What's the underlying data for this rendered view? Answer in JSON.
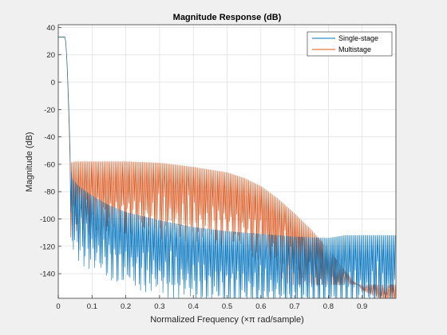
{
  "chart_data": {
    "type": "line",
    "title": "Magnitude Response (dB)",
    "xlabel": "Normalized Frequency (×π rad/sample)",
    "ylabel": "Magnitude (dB)",
    "xlim": [
      0,
      1
    ],
    "ylim": [
      -158,
      42
    ],
    "xticks": [
      0,
      0.1,
      0.2,
      0.3,
      0.4,
      0.5,
      0.6,
      0.7,
      0.8,
      0.9
    ],
    "yticks": [
      -140,
      -120,
      -100,
      -80,
      -60,
      -40,
      -20,
      0,
      20,
      40
    ],
    "grid": true,
    "legend": {
      "position": "top-right",
      "entries": [
        "Single-stage",
        "Multistage"
      ]
    },
    "colors": {
      "Single-stage": "#0072bd",
      "Multistage": "#d95319",
      "background": "#ffffff",
      "figure": "#f0f0f0",
      "grid": "#dfdfdf"
    },
    "series": [
      {
        "name": "Single-stage",
        "passband_gain_db": 33,
        "passband_edge": 0.02,
        "stopband_start": 0.035,
        "envelope_top": {
          "x": [
            0.035,
            0.04,
            0.06,
            0.1,
            0.15,
            0.2,
            0.3,
            0.4,
            0.5,
            0.6,
            0.7,
            0.8,
            0.85,
            1.0
          ],
          "y": [
            -50,
            -70,
            -76,
            -83,
            -90,
            -95,
            -101,
            -106,
            -109,
            -111,
            -113,
            -114,
            -112,
            -112
          ]
        },
        "ripple_floor_db": -150
      },
      {
        "name": "Multistage",
        "passband_gain_db": 33,
        "passband_edge": 0.02,
        "stopband_start": 0.035,
        "envelope_top": {
          "x": [
            0.035,
            0.05,
            0.1,
            0.2,
            0.3,
            0.4,
            0.5,
            0.55,
            0.6,
            0.65,
            0.7,
            0.75,
            0.8,
            0.85,
            0.9,
            0.95,
            1.0
          ],
          "y": [
            -59,
            -58,
            -58,
            -58,
            -59,
            -62,
            -66,
            -70,
            -76,
            -85,
            -96,
            -108,
            -122,
            -138,
            -152,
            -158,
            -160
          ]
        },
        "ripple_floor_db": -128
      }
    ]
  }
}
